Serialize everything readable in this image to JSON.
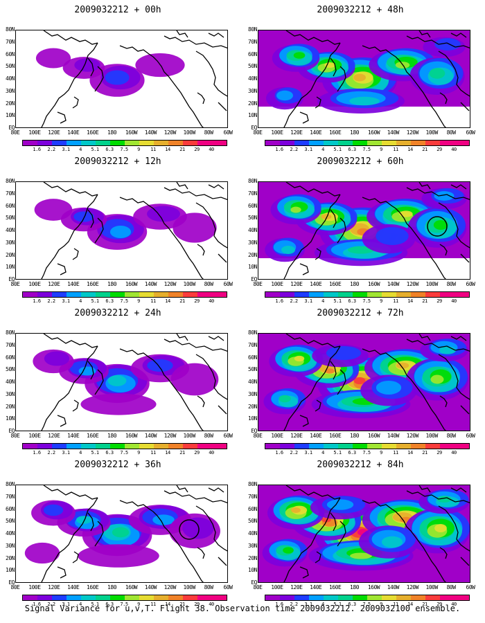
{
  "panels": [
    {
      "title": "2009032212 + 00h",
      "intensity": 1
    },
    {
      "title": "2009032212 + 48h",
      "intensity": 5
    },
    {
      "title": "2009032212 + 12h",
      "intensity": 2
    },
    {
      "title": "2009032212 + 60h",
      "intensity": 6
    },
    {
      "title": "2009032212 + 24h",
      "intensity": 3
    },
    {
      "title": "2009032212 + 72h",
      "intensity": 7
    },
    {
      "title": "2009032212 + 36h",
      "intensity": 4
    },
    {
      "title": "2009032212 + 84h",
      "intensity": 8
    }
  ],
  "lat_labels": [
    "80N",
    "70N",
    "60N",
    "50N",
    "40N",
    "30N",
    "20N",
    "10N",
    "EQ"
  ],
  "lon_labels": [
    "80E",
    "100E",
    "120E",
    "140E",
    "160E",
    "180",
    "160W",
    "140W",
    "120W",
    "100W",
    "80W",
    "60W"
  ],
  "colorbar": {
    "labels": [
      "1.6",
      "2.2",
      "3.1",
      "4",
      "5.1",
      "6.3",
      "7.5",
      "9",
      "11",
      "14",
      "21",
      "29",
      "40"
    ],
    "colors": [
      "#a000c8",
      "#7d00dc",
      "#1e3cff",
      "#00a0ff",
      "#00c8c8",
      "#00d28c",
      "#00dc00",
      "#a0e632",
      "#e6dc32",
      "#e6af2d",
      "#f08228",
      "#fa3c3c",
      "#f00082"
    ]
  },
  "caption": "Signal Variance for u,v,T. Flight 38. Observation time 2009032212. 2009032100 ensemble."
}
